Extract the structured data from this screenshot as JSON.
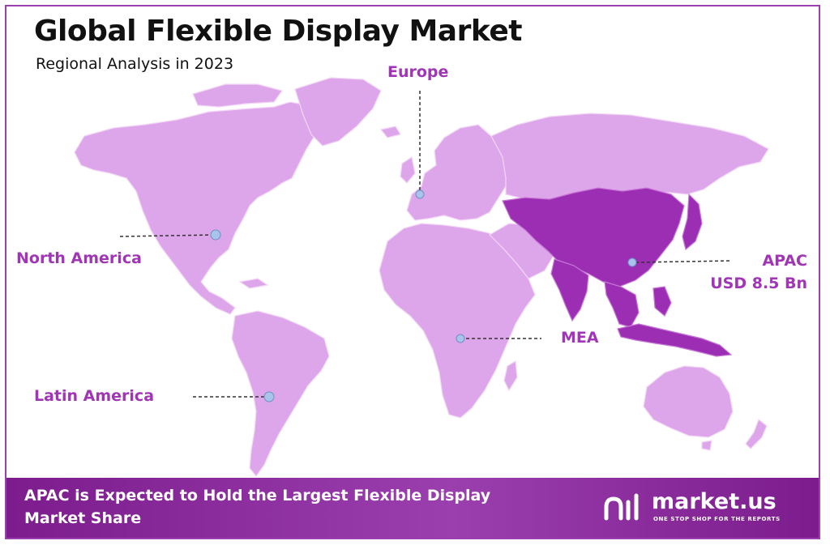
{
  "header": {
    "title": "Global Flexible Display Market",
    "subtitle": "Regional Analysis in 2023"
  },
  "regions": [
    {
      "id": "north-america",
      "label": "North America"
    },
    {
      "id": "europe",
      "label": "Europe"
    },
    {
      "id": "latin-america",
      "label": "Latin America"
    },
    {
      "id": "mea",
      "label": "MEA"
    },
    {
      "id": "apac",
      "label": "APAC",
      "value": "USD 8.5 Bn",
      "highlighted": true
    }
  ],
  "colors": {
    "land": "#dea6ea",
    "highlight": "#9c2eb3",
    "accent": "#a035b5",
    "marker": "#a9c3ea",
    "footer": "#8a2a9c",
    "border": "#9b3fae"
  },
  "footer": {
    "headline": "APAC is Expected to Hold the Largest Flexible Display Market Share"
  },
  "brand": {
    "logo_icon": "market-us-logo-icon",
    "name": "market.us",
    "tagline": "ONE STOP SHOP FOR THE REPORTS"
  }
}
